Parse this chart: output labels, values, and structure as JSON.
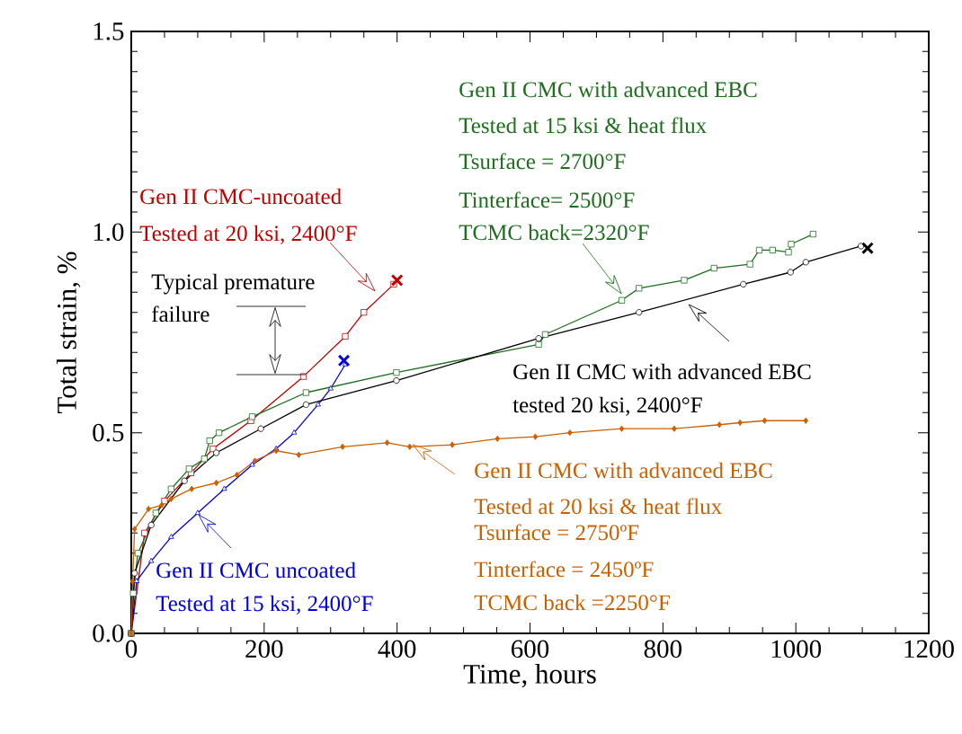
{
  "chart_data": {
    "type": "line",
    "xlabel": "Time, hours",
    "ylabel": "Total strain, %",
    "xlim": [
      0,
      1200
    ],
    "ylim": [
      0,
      1.5
    ],
    "xticks": [
      0,
      200,
      400,
      600,
      800,
      1000,
      1200
    ],
    "yticks": [
      {
        "value": 0,
        "label": "0.0"
      },
      0.5,
      {
        "value": 1,
        "label": "1.0"
      },
      1.5
    ],
    "line_style": "solid",
    "series": [
      {
        "color": "#c00000",
        "marker": "square",
        "x": [
          0,
          20,
          50,
          90,
          123,
          180,
          259,
          322,
          350,
          395
        ],
        "values": [
          0,
          0.25,
          0.33,
          0.4,
          0.46,
          0.53,
          0.64,
          0.74,
          0.8,
          0.87
        ]
      },
      {
        "color": "#0000e0",
        "marker": "triangle",
        "x": [
          0,
          8,
          30,
          60,
          100,
          140,
          182,
          218,
          245,
          281,
          300,
          322
        ],
        "values": [
          0,
          0.13,
          0.18,
          0.24,
          0.3,
          0.36,
          0.42,
          0.46,
          0.5,
          0.57,
          0.61,
          0.67
        ]
      },
      {
        "color": "#1e6e1e",
        "marker": "square",
        "x": [
          0,
          3,
          10,
          37,
          60,
          87,
          110,
          118,
          132,
          182,
          263,
          399,
          613,
          623,
          738,
          764,
          832,
          877,
          931,
          945,
          965,
          989,
          993,
          1026
        ],
        "values": [
          0,
          0.1,
          0.2,
          0.3,
          0.36,
          0.41,
          0.435,
          0.48,
          0.5,
          0.54,
          0.6,
          0.65,
          0.72,
          0.745,
          0.83,
          0.86,
          0.88,
          0.91,
          0.92,
          0.955,
          0.955,
          0.95,
          0.97,
          0.995
        ]
      },
      {
        "color": "#000000",
        "marker": "circle",
        "x": [
          0,
          5,
          30,
          80,
          128,
          195,
          263,
          399,
          613,
          764,
          921,
          992,
          1015,
          1098
        ],
        "values": [
          0,
          0.15,
          0.27,
          0.38,
          0.45,
          0.51,
          0.57,
          0.63,
          0.735,
          0.8,
          0.87,
          0.9,
          0.925,
          0.965
        ]
      },
      {
        "color": "#cc6000",
        "marker": "diamond",
        "x": [
          0,
          2,
          5,
          26,
          46,
          60,
          91,
          128,
          159,
          186,
          218,
          252,
          318,
          385,
          419,
          483,
          551,
          608,
          660,
          738,
          817,
          885,
          916,
          953,
          1015
        ],
        "values": [
          0,
          0.13,
          0.26,
          0.31,
          0.32,
          0.335,
          0.36,
          0.375,
          0.395,
          0.43,
          0.455,
          0.445,
          0.465,
          0.475,
          0.465,
          0.47,
          0.485,
          0.49,
          0.5,
          0.51,
          0.51,
          0.52,
          0.525,
          0.53,
          0.53
        ]
      },
      {
        "type": "scatter",
        "color": "#c00000",
        "marker": "cross",
        "x": [
          400
        ],
        "values": [
          0.88
        ]
      },
      {
        "type": "scatter",
        "color": "#0000e0",
        "marker": "cross",
        "x": [
          320
        ],
        "values": [
          0.68
        ]
      },
      {
        "type": "scatter",
        "color": "#000000",
        "marker": "cross",
        "x": [
          1108
        ],
        "values": [
          0.96
        ]
      }
    ],
    "annotations": [
      "Gen II CMC-uncoated",
      "Tested at 20 ksi, 2400°F",
      "Typical premature",
      "failure",
      "Gen II CMC with advanced EBC",
      "Tested at 15 ksi & heat flux",
      "Tsurface = 2700°F",
      "Tinterface= 2500°F",
      "TCMC back=2320°F",
      "Gen II CMC with advanced EBC",
      "tested 20 ksi, 2400°F",
      "Gen II CMC with advanced EBC",
      "Tested at 20 ksi & heat flux",
      "Tsurface = 2750ºF",
      "Tinterface = 2450ºF",
      "TCMC back =2250°F",
      "Gen II CMC uncoated",
      "Tested at 15 ksi, 2400°F"
    ]
  }
}
